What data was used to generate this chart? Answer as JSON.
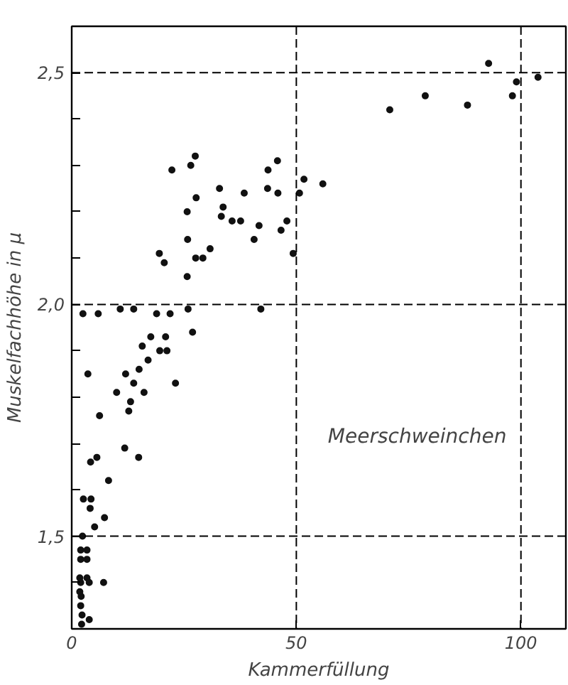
{
  "chart_data": {
    "type": "scatter",
    "xlabel": "Kammerfüllung",
    "ylabel": "Muskelfachhöhe in μ",
    "annotations": [
      "Meerschweinchen"
    ],
    "xlim": [
      0,
      110
    ],
    "ylim": [
      1.3,
      2.6
    ],
    "xticks": [
      0,
      50,
      100
    ],
    "yticks": [
      {
        "value": 1.4,
        "label": null
      },
      {
        "value": 1.5,
        "label": "1,5"
      },
      {
        "value": 1.6,
        "label": null
      },
      {
        "value": 1.7,
        "label": null
      },
      {
        "value": 1.8,
        "label": null
      },
      {
        "value": 1.9,
        "label": null
      },
      {
        "value": 2.0,
        "label": "2,0"
      },
      {
        "value": 2.1,
        "label": null
      },
      {
        "value": 2.2,
        "label": null
      },
      {
        "value": 2.3,
        "label": null
      },
      {
        "value": 2.4,
        "label": null
      },
      {
        "value": 2.5,
        "label": "2,5"
      }
    ],
    "grid": true,
    "marker": "circle",
    "series": [
      {
        "color": "#111111",
        "x": [
          92.8,
          103.8,
          99.0,
          98.1,
          78.7,
          88.1,
          70.8,
          27.5,
          26.5,
          22.3,
          45.8,
          43.7,
          51.7,
          55.9,
          50.7,
          45.9,
          43.6,
          38.4,
          32.9,
          27.7,
          33.7,
          25.7,
          33.3,
          35.7,
          37.6,
          41.7,
          47.9,
          46.6,
          40.6,
          25.8,
          30.8,
          19.5,
          20.6,
          27.6,
          29.2,
          49.3,
          25.7,
          42.1,
          2.5,
          5.9,
          10.8,
          13.8,
          18.9,
          21.9,
          25.9,
          26.9,
          15.7,
          17.6,
          20.9,
          19.6,
          21.2,
          17.0,
          15.0,
          12.0,
          3.6,
          13.8,
          23.1,
          16.1,
          10.0,
          13.1,
          12.7,
          6.2,
          11.8,
          14.9,
          5.6,
          4.2,
          8.2,
          2.6,
          4.3,
          4.1,
          7.3,
          5.1,
          2.4,
          2.0,
          3.4,
          2.0,
          3.4,
          7.1,
          1.8,
          3.4,
          2.0,
          3.9,
          1.8,
          2.1,
          2.0,
          2.3,
          3.9,
          2.2
        ],
        "values": [
          2.52,
          2.49,
          2.48,
          2.45,
          2.45,
          2.43,
          2.42,
          2.32,
          2.3,
          2.29,
          2.31,
          2.29,
          2.27,
          2.26,
          2.24,
          2.24,
          2.25,
          2.24,
          2.25,
          2.23,
          2.21,
          2.2,
          2.19,
          2.18,
          2.18,
          2.17,
          2.18,
          2.16,
          2.14,
          2.14,
          2.12,
          2.11,
          2.09,
          2.1,
          2.1,
          2.11,
          2.06,
          1.99,
          1.98,
          1.98,
          1.99,
          1.99,
          1.98,
          1.98,
          1.99,
          1.94,
          1.91,
          1.93,
          1.93,
          1.9,
          1.9,
          1.88,
          1.86,
          1.85,
          1.85,
          1.83,
          1.83,
          1.81,
          1.81,
          1.79,
          1.77,
          1.76,
          1.69,
          1.67,
          1.67,
          1.66,
          1.62,
          1.58,
          1.58,
          1.56,
          1.54,
          1.52,
          1.5,
          1.47,
          1.47,
          1.45,
          1.45,
          1.4,
          1.41,
          1.41,
          1.4,
          1.4,
          1.38,
          1.37,
          1.35,
          1.33,
          1.32,
          1.31
        ]
      }
    ]
  }
}
